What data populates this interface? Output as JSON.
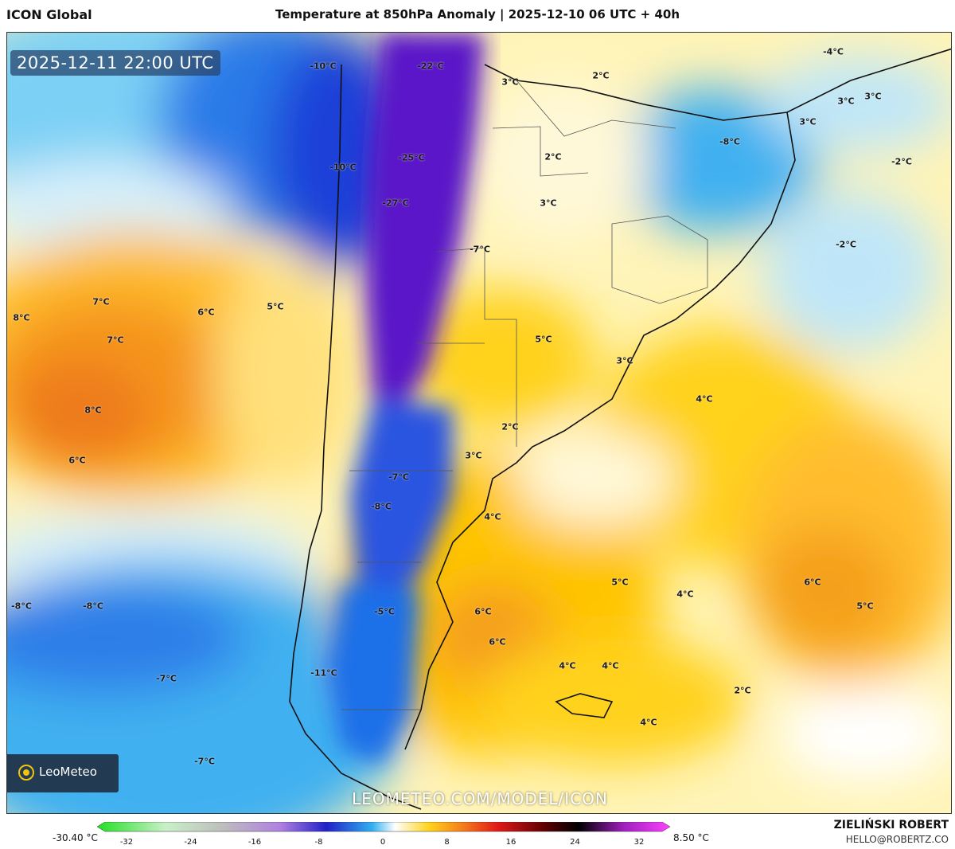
{
  "header": {
    "model": "ICON Global",
    "title": "Temperature at 850hPa Anomaly | 2025-12-10 06 UTC + 40h"
  },
  "map": {
    "valid_time": "2025-12-11 22:00 UTC",
    "watermark": "LEOMETEO.COM/MODEL/ICON",
    "logo_text": "LeoMeteo",
    "labels": [
      {
        "text": "-10°C"
      },
      {
        "text": "-22°C"
      },
      {
        "text": "3°C"
      },
      {
        "text": "2°C"
      },
      {
        "text": "-4°C"
      },
      {
        "text": "3°C"
      },
      {
        "text": "3°C"
      },
      {
        "text": "3°C"
      },
      {
        "text": "-25°C"
      },
      {
        "text": "2°C"
      },
      {
        "text": "-8°C"
      },
      {
        "text": "-10°C"
      },
      {
        "text": "-2°C"
      },
      {
        "text": "-27°C"
      },
      {
        "text": "3°C"
      },
      {
        "text": "-7°C"
      },
      {
        "text": "-2°C"
      },
      {
        "text": "7°C"
      },
      {
        "text": "6°C"
      },
      {
        "text": "5°C"
      },
      {
        "text": "8°C"
      },
      {
        "text": "7°C"
      },
      {
        "text": "5°C"
      },
      {
        "text": "3°C"
      },
      {
        "text": "4°C"
      },
      {
        "text": "8°C"
      },
      {
        "text": "2°C"
      },
      {
        "text": "6°C"
      },
      {
        "text": "3°C"
      },
      {
        "text": "-7°C"
      },
      {
        "text": "-8°C"
      },
      {
        "text": "4°C"
      },
      {
        "text": "5°C"
      },
      {
        "text": "4°C"
      },
      {
        "text": "6°C"
      },
      {
        "text": "5°C"
      },
      {
        "text": "-8°C"
      },
      {
        "text": "-8°C"
      },
      {
        "text": "-5°C"
      },
      {
        "text": "6°C"
      },
      {
        "text": "6°C"
      },
      {
        "text": "4°C"
      },
      {
        "text": "4°C"
      },
      {
        "text": "-7°C"
      },
      {
        "text": "-11°C"
      },
      {
        "text": "2°C"
      },
      {
        "text": "4°C"
      },
      {
        "text": "-7°C"
      }
    ]
  },
  "colorbar": {
    "min_label": "-30.40 °C",
    "max_label": "8.50 °C",
    "ticks": [
      "-32",
      "-24",
      "-16",
      "-8",
      "0",
      "8",
      "16",
      "24",
      "32"
    ]
  },
  "credits": {
    "author": "ZIELIŃSKI ROBERT",
    "email": "HELLO@ROBERTZ.CO"
  },
  "colors": {
    "deep_purple": "#5a18c8",
    "blue": "#1f4fe0",
    "light_blue": "#3fb0f0",
    "pale_blue": "#bfe6f8",
    "pale_yellow": "#fff2b0",
    "yellow": "#ffd21a",
    "orange": "#f5951c"
  }
}
